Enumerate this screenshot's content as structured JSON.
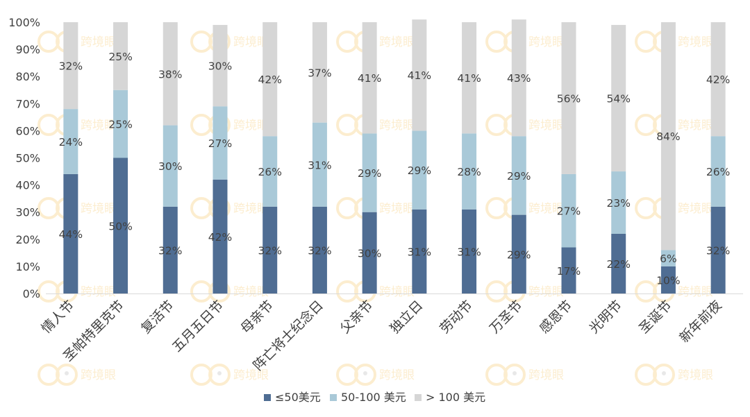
{
  "chart_data": {
    "type": "bar",
    "stacked": true,
    "categories": [
      "情人节",
      "圣帕特里克节",
      "复活节",
      "五月五日节",
      "母亲节",
      "阵亡将士纪念日",
      "父亲节",
      "独立日",
      "劳动节",
      "万圣节",
      "感恩节",
      "光明节",
      "圣诞节",
      "新年前夜"
    ],
    "series": [
      {
        "name": "≤50美元",
        "color": "#4f6d93",
        "values": [
          44,
          50,
          32,
          42,
          32,
          32,
          30,
          31,
          31,
          29,
          17,
          22,
          10,
          32
        ]
      },
      {
        "name": "50-100 美元",
        "color": "#a9c9d8",
        "values": [
          24,
          25,
          30,
          27,
          26,
          31,
          29,
          29,
          28,
          29,
          27,
          23,
          6,
          26
        ]
      },
      {
        "name": "> 100 美元",
        "color": "#d6d6d6",
        "values": [
          32,
          25,
          38,
          30,
          42,
          37,
          41,
          41,
          41,
          43,
          56,
          54,
          84,
          42
        ]
      }
    ],
    "data_labels": [
      [
        "44%",
        "50%",
        "32%",
        "42%",
        "32%",
        "32%",
        "30%",
        "31%",
        "31%",
        "29%",
        "17%",
        "22%",
        "10%",
        "32%"
      ],
      [
        "24%",
        "25%",
        "30%",
        "27%",
        "26%",
        "31%",
        "29%",
        "29%",
        "28%",
        "29%",
        "27%",
        "23%",
        "6%",
        "26%"
      ],
      [
        "32%",
        "25%",
        "38%",
        "30%",
        "42%",
        "37%",
        "41%",
        "41%",
        "41%",
        "43%",
        "56%",
        "54%",
        "84%",
        "42%"
      ]
    ],
    "y_ticks": [
      "0%",
      "10%",
      "20%",
      "30%",
      "40%",
      "50%",
      "60%",
      "70%",
      "80%",
      "90%",
      "100%"
    ],
    "ylim": [
      0,
      100
    ],
    "grid": false,
    "legend_position": "bottom",
    "watermark": "跨境眼"
  }
}
